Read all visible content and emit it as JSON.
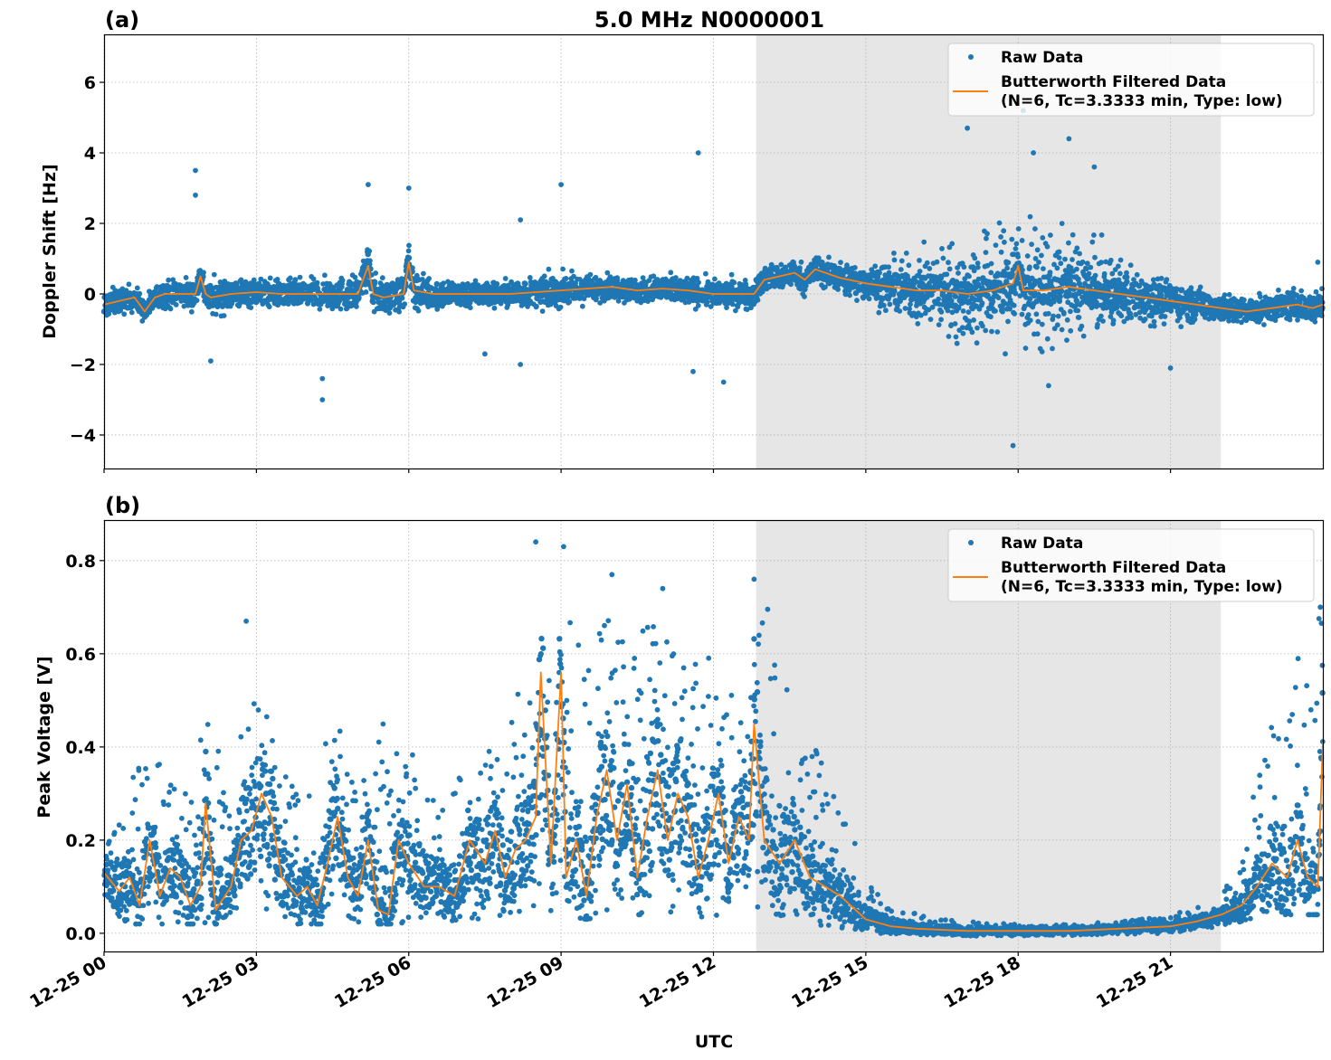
{
  "colors": {
    "raw": "#1f77b4",
    "filtered": "#ff7f0e",
    "shade": "#e6e6e6",
    "grid": "#b0b0b0"
  },
  "chart_data": [
    {
      "type": "scatter",
      "panel_label": "(a)",
      "title": "5.0 MHz N0000001",
      "xlabel": "",
      "ylabel": "Doppler Shift [Hz]",
      "x_unit": "hours UTC since 12-25 00",
      "xlim": [
        0,
        24
      ],
      "ylim": [
        -4.95,
        7.36
      ],
      "grid": true,
      "yticks": [
        6,
        4,
        2,
        0,
        -2,
        -4
      ],
      "ytick_labels": [
        "6",
        "4",
        "2",
        "0",
        "−2",
        "−4"
      ],
      "xticks": [
        0,
        3,
        6,
        9,
        12,
        15,
        18,
        21
      ],
      "shaded_interval": [
        12.84,
        21.99
      ],
      "legend": {
        "placement": "upper right",
        "entries": [
          "Raw Data",
          "Butterworth Filtered Data",
          "(N=6, Tc=3.3333 min, Type: low)"
        ]
      },
      "series": [
        {
          "name": "Butterworth Filtered Data (N=6, Tc=3.3333 min, Type: low)",
          "kind": "line",
          "x": [
            0,
            0.3,
            0.6,
            0.8,
            1.0,
            1.2,
            1.5,
            1.8,
            1.9,
            2.0,
            2.1,
            2.5,
            3.0,
            3.5,
            4.0,
            4.5,
            5.0,
            5.2,
            5.3,
            5.5,
            5.9,
            6.0,
            6.1,
            6.5,
            7.0,
            7.5,
            8.0,
            8.5,
            9.0,
            9.5,
            10.0,
            10.5,
            11.0,
            11.5,
            12.0,
            12.5,
            12.8,
            13.0,
            13.3,
            13.6,
            13.8,
            14.0,
            14.5,
            15.0,
            15.5,
            16.0,
            16.5,
            17.0,
            17.5,
            17.9,
            18.0,
            18.1,
            18.5,
            19.0,
            19.5,
            20.0,
            20.5,
            21.0,
            21.5,
            22.0,
            22.5,
            23.0,
            23.5,
            23.8,
            24.0
          ],
          "y": [
            -0.3,
            -0.2,
            -0.1,
            -0.5,
            -0.1,
            0.0,
            0.0,
            0.0,
            0.5,
            0.0,
            -0.1,
            0.0,
            0.05,
            0.0,
            0.0,
            0.0,
            0.0,
            0.8,
            0.0,
            -0.1,
            0.0,
            0.9,
            0.1,
            0.0,
            0.0,
            0.0,
            0.0,
            0.05,
            0.1,
            0.15,
            0.2,
            0.1,
            0.15,
            0.1,
            0.0,
            0.0,
            0.0,
            0.4,
            0.5,
            0.6,
            0.4,
            0.7,
            0.45,
            0.3,
            0.2,
            0.1,
            0.1,
            0.0,
            0.1,
            0.3,
            0.8,
            0.1,
            0.1,
            0.2,
            0.1,
            0.0,
            -0.1,
            -0.2,
            -0.3,
            -0.4,
            -0.5,
            -0.4,
            -0.3,
            -0.4,
            -0.3
          ]
        },
        {
          "name": "Raw Data",
          "kind": "scatter-envelope",
          "x": [
            0,
            1,
            2,
            3,
            4,
            5,
            6,
            7,
            8,
            9,
            10,
            11,
            12,
            13,
            14,
            15,
            16,
            17,
            18,
            19,
            20,
            21,
            22,
            23,
            24
          ],
          "spread": [
            0.35,
            0.3,
            0.45,
            0.35,
            0.35,
            0.45,
            0.45,
            0.35,
            0.35,
            0.4,
            0.3,
            0.35,
            0.35,
            0.35,
            0.35,
            0.45,
            0.8,
            1.3,
            1.6,
            1.3,
            0.8,
            0.5,
            0.35,
            0.35,
            0.4
          ],
          "outliers": [
            [
              1.8,
              3.5
            ],
            [
              1.8,
              2.8
            ],
            [
              2.1,
              -1.9
            ],
            [
              4.3,
              -3.0
            ],
            [
              4.3,
              -2.4
            ],
            [
              5.2,
              3.1
            ],
            [
              6.0,
              3.0
            ],
            [
              7.5,
              -1.7
            ],
            [
              8.2,
              -2.0
            ],
            [
              8.2,
              2.1
            ],
            [
              9.0,
              3.1
            ],
            [
              11.7,
              4.0
            ],
            [
              11.6,
              -2.2
            ],
            [
              12.2,
              -2.5
            ],
            [
              17.0,
              4.7
            ],
            [
              17.9,
              -4.3
            ],
            [
              18.1,
              5.2
            ],
            [
              18.3,
              4.0
            ],
            [
              18.6,
              -2.6
            ],
            [
              19.0,
              4.4
            ],
            [
              19.5,
              3.6
            ],
            [
              21.0,
              -2.1
            ],
            [
              23.9,
              0.9
            ]
          ]
        }
      ]
    },
    {
      "type": "scatter",
      "panel_label": "(b)",
      "xlabel": "UTC",
      "ylabel": "Peak Voltage [V]",
      "x_unit": "hours UTC since 12-25 00",
      "xlim": [
        0,
        24
      ],
      "ylim": [
        -0.039,
        0.887
      ],
      "grid": true,
      "yticks": [
        0.8,
        0.6,
        0.4,
        0.2,
        0.0
      ],
      "ytick_labels": [
        "0.8",
        "0.6",
        "0.4",
        "0.2",
        "0.0"
      ],
      "xticks": [
        0,
        3,
        6,
        9,
        12,
        15,
        18,
        21
      ],
      "xtick_labels": [
        "12-25 00",
        "12-25 03",
        "12-25 06",
        "12-25 09",
        "12-25 12",
        "12-25 15",
        "12-25 18",
        "12-25 21"
      ],
      "shaded_interval": [
        12.84,
        21.99
      ],
      "legend": {
        "placement": "upper right",
        "entries": [
          "Raw Data",
          "Butterworth Filtered Data",
          "(N=6, Tc=3.3333 min, Type: low)"
        ]
      },
      "series": [
        {
          "name": "Butterworth Filtered Data (N=6, Tc=3.3333 min, Type: low)",
          "kind": "line",
          "x": [
            0,
            0.3,
            0.5,
            0.7,
            0.9,
            1.1,
            1.3,
            1.5,
            1.7,
            1.9,
            2.0,
            2.2,
            2.5,
            2.7,
            2.9,
            3.1,
            3.3,
            3.5,
            3.8,
            4.0,
            4.2,
            4.4,
            4.6,
            4.8,
            5.0,
            5.2,
            5.4,
            5.6,
            5.8,
            6.0,
            6.3,
            6.6,
            6.9,
            7.2,
            7.5,
            7.7,
            7.9,
            8.1,
            8.3,
            8.5,
            8.6,
            8.8,
            9.0,
            9.1,
            9.3,
            9.5,
            9.7,
            9.9,
            10.1,
            10.3,
            10.5,
            10.7,
            10.9,
            11.1,
            11.3,
            11.5,
            11.7,
            11.9,
            12.1,
            12.3,
            12.5,
            12.7,
            12.8,
            13.0,
            13.3,
            13.6,
            13.9,
            14.2,
            14.5,
            14.8,
            15.0,
            15.5,
            16.0,
            17.0,
            18.0,
            19.0,
            20.0,
            21.0,
            21.5,
            22.0,
            22.4,
            22.7,
            23.0,
            23.3,
            23.5,
            23.7,
            23.9,
            24.0
          ],
          "y": [
            0.13,
            0.09,
            0.12,
            0.06,
            0.2,
            0.08,
            0.14,
            0.12,
            0.06,
            0.1,
            0.28,
            0.05,
            0.1,
            0.2,
            0.22,
            0.3,
            0.25,
            0.12,
            0.08,
            0.1,
            0.06,
            0.15,
            0.25,
            0.12,
            0.08,
            0.2,
            0.05,
            0.04,
            0.2,
            0.15,
            0.1,
            0.1,
            0.08,
            0.2,
            0.15,
            0.22,
            0.12,
            0.18,
            0.2,
            0.25,
            0.56,
            0.15,
            0.56,
            0.12,
            0.2,
            0.08,
            0.25,
            0.35,
            0.2,
            0.32,
            0.12,
            0.25,
            0.35,
            0.2,
            0.3,
            0.25,
            0.12,
            0.2,
            0.3,
            0.15,
            0.25,
            0.2,
            0.45,
            0.2,
            0.15,
            0.2,
            0.12,
            0.1,
            0.08,
            0.05,
            0.03,
            0.015,
            0.01,
            0.005,
            0.005,
            0.005,
            0.01,
            0.015,
            0.025,
            0.04,
            0.06,
            0.1,
            0.15,
            0.12,
            0.2,
            0.12,
            0.1,
            0.41
          ]
        },
        {
          "name": "Raw Data",
          "kind": "scatter-envelope",
          "x": [
            0,
            0.5,
            1,
            1.5,
            2,
            2.5,
            3,
            3.5,
            4,
            4.5,
            5,
            5.5,
            6,
            6.5,
            7,
            7.5,
            8,
            8.5,
            9,
            9.5,
            10,
            10.5,
            11,
            11.5,
            12,
            12.5,
            13,
            13.5,
            14,
            14.5,
            15,
            16,
            17,
            18,
            19,
            20,
            21,
            22,
            22.5,
            23,
            23.5,
            24
          ],
          "low": [
            0.03,
            0.02,
            0.02,
            0.02,
            0.02,
            0.02,
            0.04,
            0.02,
            0.02,
            0.02,
            0.02,
            0.02,
            0.02,
            0.02,
            0.03,
            0.02,
            0.03,
            0.03,
            0.04,
            0.03,
            0.04,
            0.04,
            0.04,
            0.03,
            0.04,
            0.03,
            0.03,
            0.02,
            0.01,
            0.005,
            0.0,
            -0.005,
            -0.005,
            -0.005,
            -0.005,
            -0.005,
            0.0,
            0.01,
            0.03,
            0.04,
            0.04,
            0.04
          ],
          "high": [
            0.2,
            0.36,
            0.38,
            0.3,
            0.46,
            0.35,
            0.6,
            0.4,
            0.3,
            0.54,
            0.28,
            0.5,
            0.42,
            0.3,
            0.35,
            0.4,
            0.5,
            0.55,
            0.8,
            0.6,
            0.72,
            0.7,
            0.72,
            0.6,
            0.6,
            0.5,
            0.75,
            0.5,
            0.4,
            0.3,
            0.12,
            0.04,
            0.025,
            0.02,
            0.02,
            0.025,
            0.04,
            0.07,
            0.25,
            0.45,
            0.6,
            0.7
          ],
          "outliers": [
            [
              2.8,
              0.67
            ],
            [
              8.5,
              0.84
            ],
            [
              9.05,
              0.83
            ],
            [
              10.0,
              0.77
            ],
            [
              11.0,
              0.74
            ],
            [
              12.8,
              0.76
            ],
            [
              23.95,
              0.7
            ]
          ]
        }
      ]
    }
  ]
}
